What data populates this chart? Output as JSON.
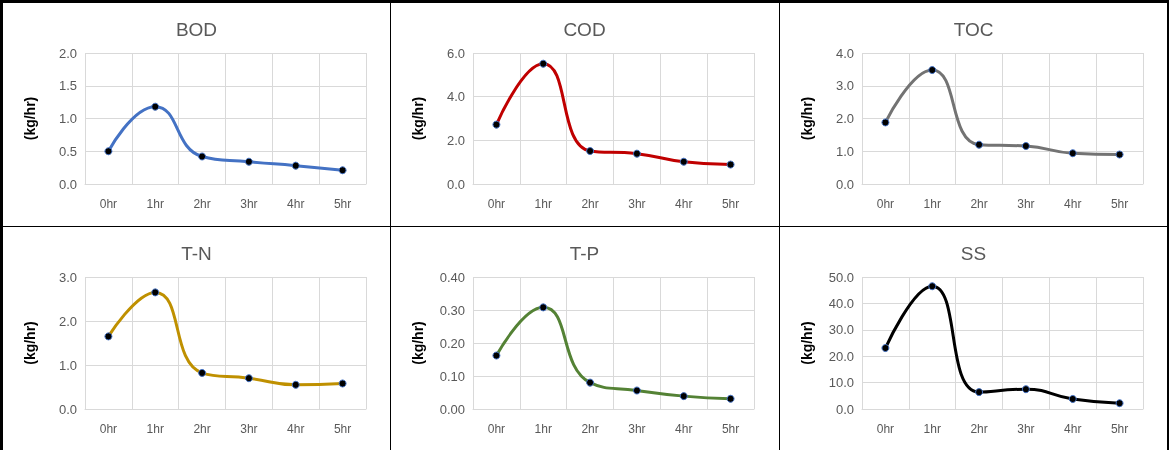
{
  "chart_data": [
    {
      "type": "line",
      "title": "BOD",
      "ylabel": "(kg/hr)",
      "categories": [
        "0hr",
        "1hr",
        "2hr",
        "3hr",
        "4hr",
        "5hr"
      ],
      "values": [
        0.5,
        1.18,
        0.42,
        0.34,
        0.28,
        0.21
      ],
      "color": "#4472c4",
      "ylim": [
        0,
        2
      ],
      "yticks": [
        {
          "value": 0,
          "label": "0.0"
        },
        {
          "value": 0.5,
          "label": "0.5"
        },
        {
          "value": 1,
          "label": "1.0"
        },
        {
          "value": 1.5,
          "label": "1.5"
        },
        {
          "value": 2,
          "label": "2.0"
        }
      ],
      "grid": true,
      "marker": "circle"
    },
    {
      "type": "line",
      "title": "COD",
      "ylabel": "(kg/hr)",
      "categories": [
        "0hr",
        "1hr",
        "2hr",
        "3hr",
        "4hr",
        "5hr"
      ],
      "values": [
        2.72,
        5.51,
        1.51,
        1.39,
        1.02,
        0.89
      ],
      "color": "#c00000",
      "ylim": [
        0,
        6
      ],
      "yticks": [
        {
          "value": 0,
          "label": "0.0"
        },
        {
          "value": 2,
          "label": "2.0"
        },
        {
          "value": 4,
          "label": "4.0"
        },
        {
          "value": 6,
          "label": "6.0"
        }
      ],
      "grid": true,
      "marker": "circle"
    },
    {
      "type": "line",
      "title": "TOC",
      "ylabel": "(kg/hr)",
      "categories": [
        "0hr",
        "1hr",
        "2hr",
        "3hr",
        "4hr",
        "5hr"
      ],
      "values": [
        1.88,
        3.48,
        1.2,
        1.16,
        0.94,
        0.9
      ],
      "color": "#737373",
      "ylim": [
        0,
        4
      ],
      "yticks": [
        {
          "value": 0,
          "label": "0.0"
        },
        {
          "value": 1,
          "label": "1.0"
        },
        {
          "value": 2,
          "label": "2.0"
        },
        {
          "value": 3,
          "label": "3.0"
        },
        {
          "value": 4,
          "label": "4.0"
        }
      ],
      "grid": true,
      "marker": "circle"
    },
    {
      "type": "line",
      "title": "T-N",
      "ylabel": "(kg/hr)",
      "categories": [
        "0hr",
        "1hr",
        "2hr",
        "3hr",
        "4hr",
        "5hr"
      ],
      "values": [
        1.65,
        2.65,
        0.82,
        0.7,
        0.55,
        0.58
      ],
      "color": "#bf9000",
      "ylim": [
        0,
        3
      ],
      "yticks": [
        {
          "value": 0,
          "label": "0.0"
        },
        {
          "value": 1,
          "label": "1.0"
        },
        {
          "value": 2,
          "label": "2.0"
        },
        {
          "value": 3,
          "label": "3.0"
        }
      ],
      "grid": true,
      "marker": "circle"
    },
    {
      "type": "line",
      "title": "T-P",
      "ylabel": "(kg/hr)",
      "categories": [
        "0hr",
        "1hr",
        "2hr",
        "3hr",
        "4hr",
        "5hr"
      ],
      "values": [
        0.162,
        0.308,
        0.08,
        0.056,
        0.039,
        0.031
      ],
      "color": "#548235",
      "ylim": [
        0,
        0.4
      ],
      "yticks": [
        {
          "value": 0,
          "label": "0.00"
        },
        {
          "value": 0.1,
          "label": "0.10"
        },
        {
          "value": 0.2,
          "label": "0.20"
        },
        {
          "value": 0.3,
          "label": "0.30"
        },
        {
          "value": 0.4,
          "label": "0.40"
        }
      ],
      "grid": true,
      "marker": "circle"
    },
    {
      "type": "line",
      "title": "SS",
      "ylabel": "(kg/hr)",
      "categories": [
        "0hr",
        "1hr",
        "2hr",
        "3hr",
        "4hr",
        "5hr"
      ],
      "values": [
        23.1,
        46.5,
        6.4,
        7.5,
        3.8,
        2.2
      ],
      "color": "#000000",
      "ylim": [
        0,
        50
      ],
      "yticks": [
        {
          "value": 0,
          "label": "0.0"
        },
        {
          "value": 10,
          "label": "10.0"
        },
        {
          "value": 20,
          "label": "20.0"
        },
        {
          "value": 30,
          "label": "30.0"
        },
        {
          "value": 40,
          "label": "40.0"
        },
        {
          "value": 50,
          "label": "50.0"
        }
      ],
      "grid": true,
      "marker": "circle"
    }
  ]
}
